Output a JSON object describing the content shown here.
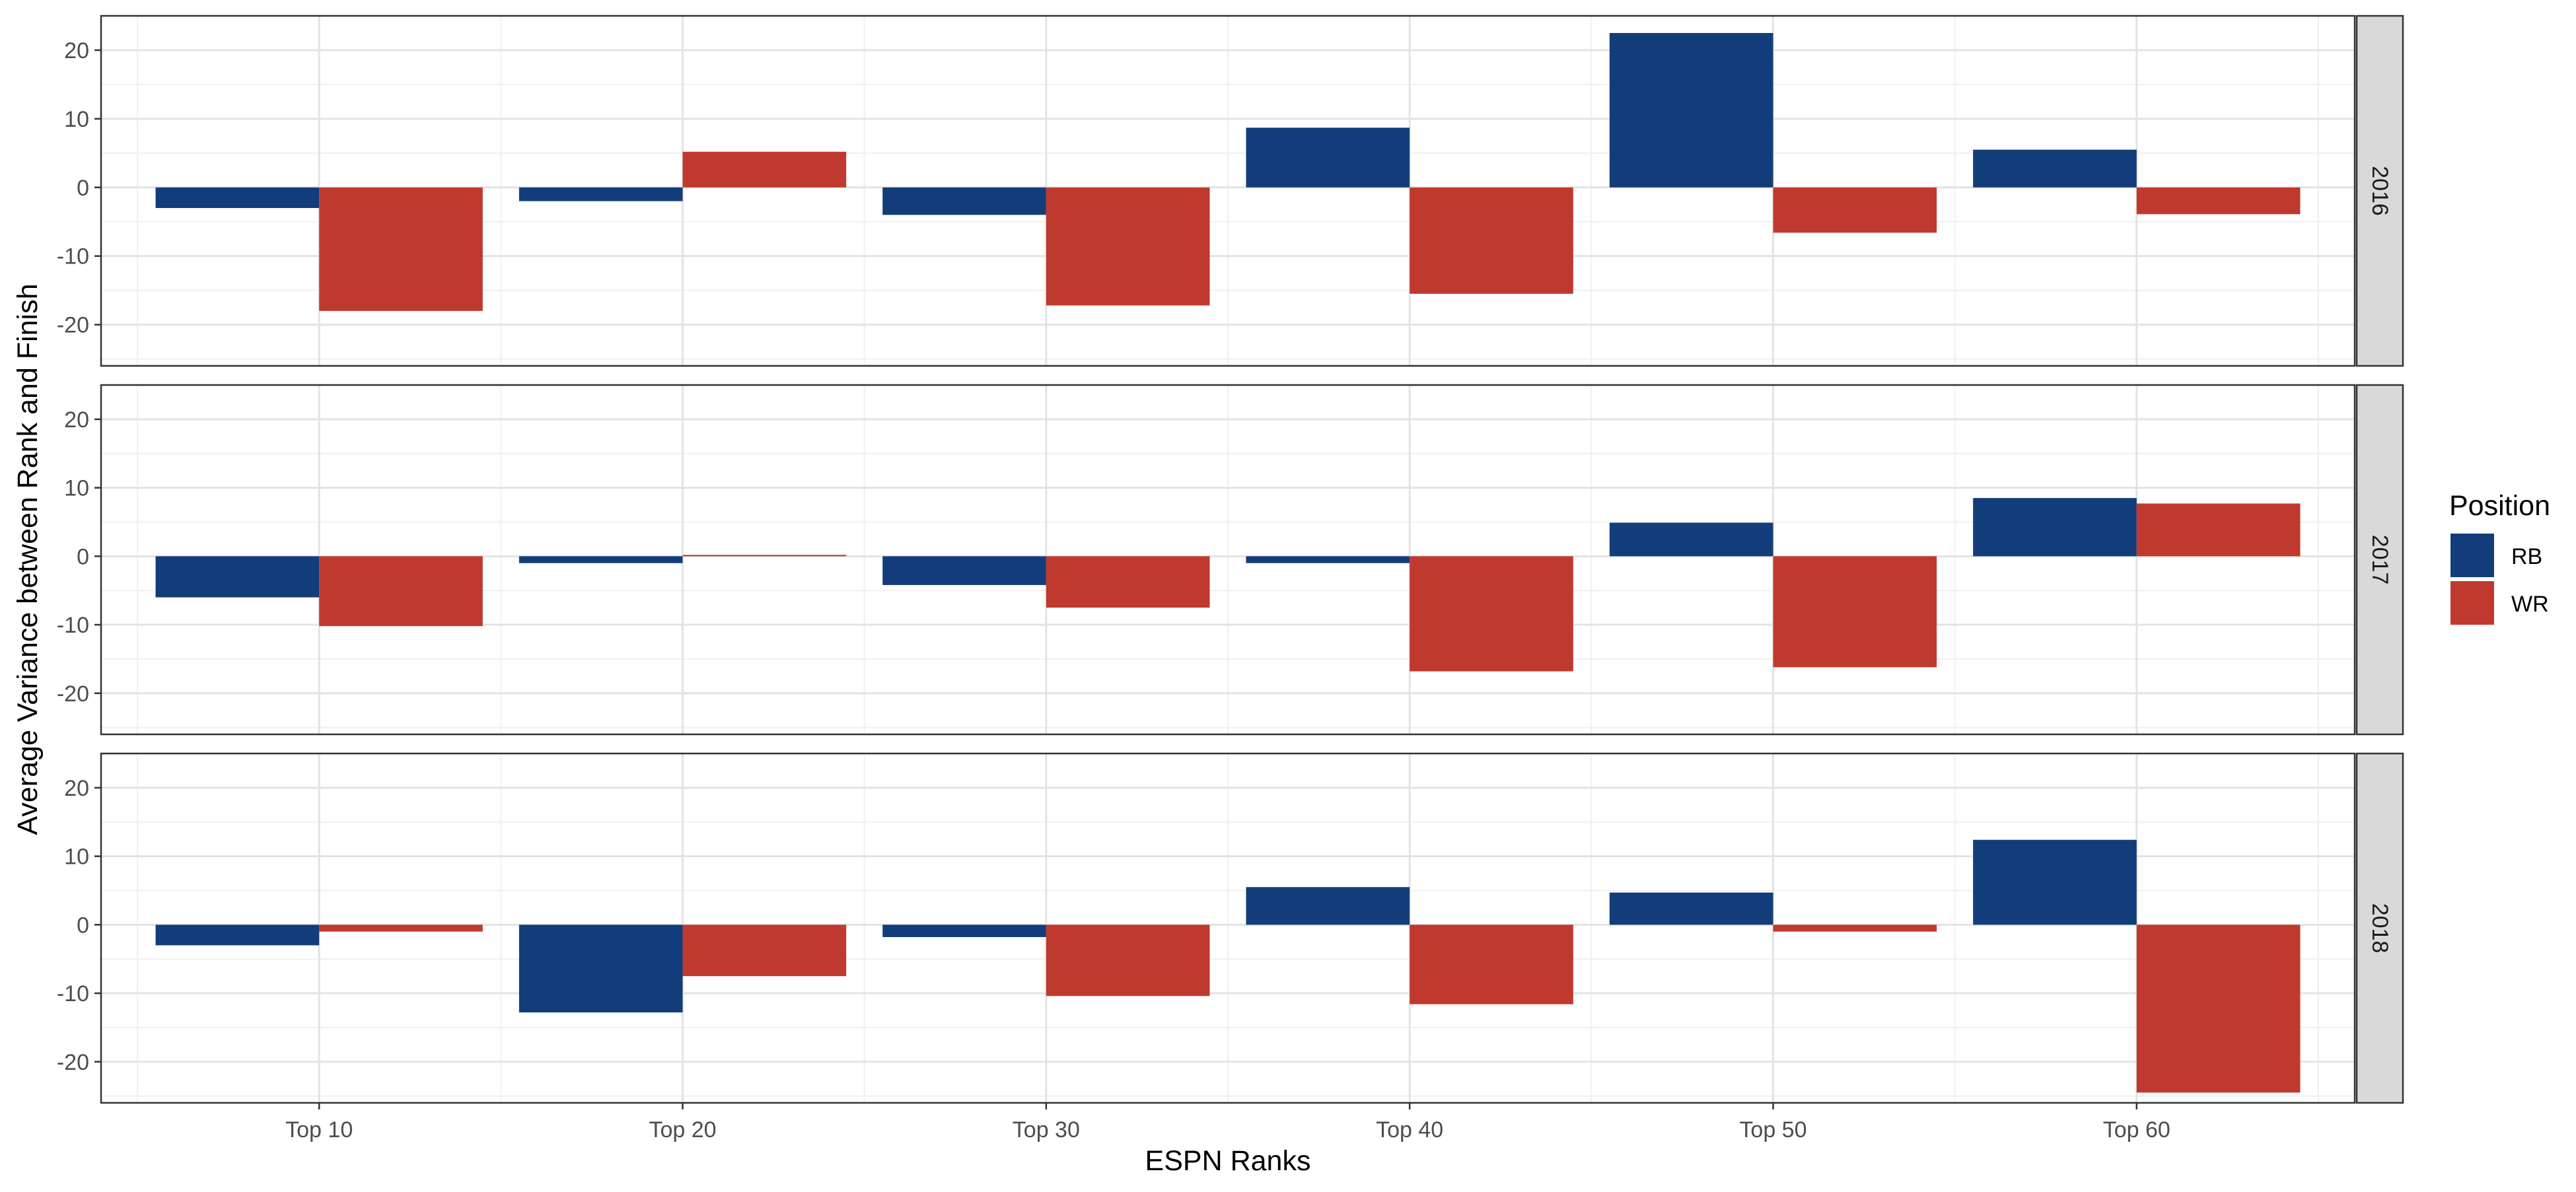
{
  "chart_data": {
    "type": "bar",
    "xlabel": "ESPN Ranks",
    "ylabel": "Average Variance between Rank and Finish",
    "categories": [
      "Top 10",
      "Top 20",
      "Top 30",
      "Top 40",
      "Top 50",
      "Top 60"
    ],
    "ylim": [
      -26,
      25
    ],
    "yticks": [
      -20,
      -10,
      0,
      10,
      20
    ],
    "grid": true,
    "legend": {
      "title": "Position",
      "position": "right",
      "entries": [
        "RB",
        "WR"
      ]
    },
    "colors": {
      "RB": "#123D7A",
      "WR": "#C0392F"
    },
    "facets": [
      {
        "label": "2016",
        "series": [
          {
            "name": "RB",
            "values": [
              -3,
              -2,
              -4,
              8.7,
              22.5,
              5.5
            ]
          },
          {
            "name": "WR",
            "values": [
              -18,
              5.2,
              -17.2,
              -15.5,
              -6.6,
              -3.9
            ]
          }
        ]
      },
      {
        "label": "2017",
        "series": [
          {
            "name": "RB",
            "values": [
              -6,
              -1,
              -4.2,
              -1,
              4.9,
              8.5
            ]
          },
          {
            "name": "WR",
            "values": [
              -10.2,
              0.2,
              -7.5,
              -16.8,
              -16.2,
              7.7
            ]
          }
        ]
      },
      {
        "label": "2018",
        "series": [
          {
            "name": "RB",
            "values": [
              -3,
              -12.8,
              -1.8,
              5.5,
              4.7,
              12.4
            ]
          },
          {
            "name": "WR",
            "values": [
              -1,
              -7.5,
              -10.4,
              -11.6,
              -1,
              -24.5
            ]
          }
        ]
      }
    ]
  }
}
